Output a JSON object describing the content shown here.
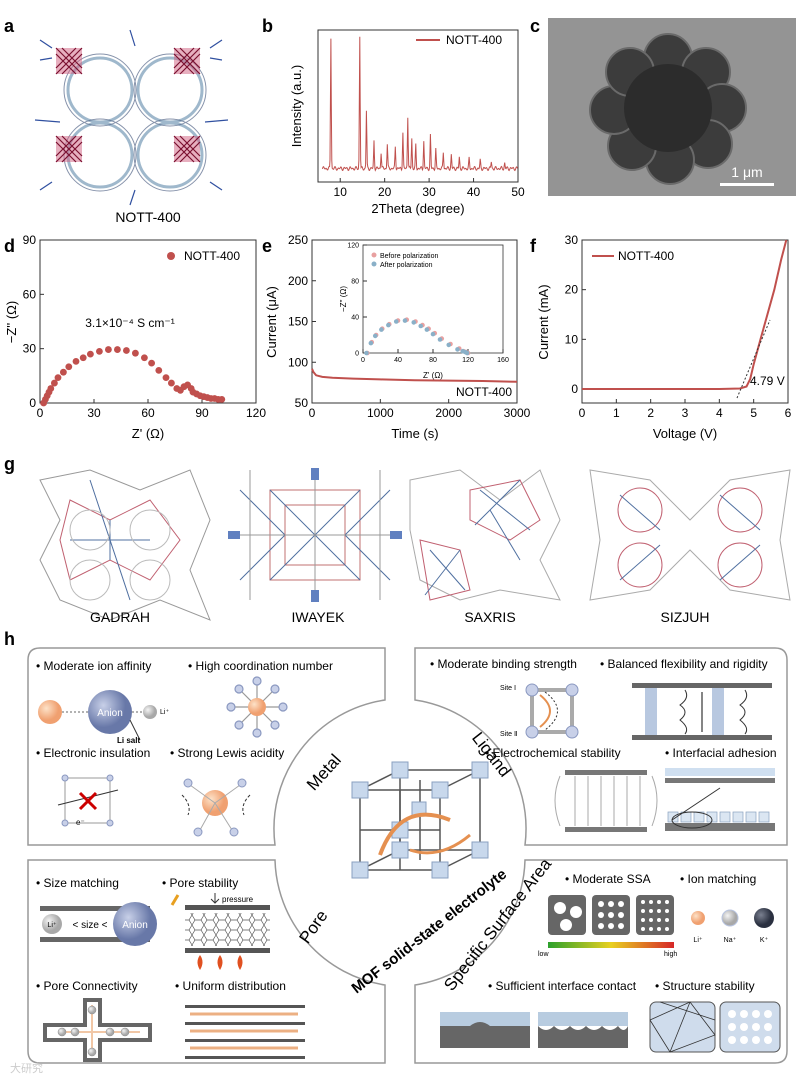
{
  "panel_letters": {
    "a": "a",
    "b": "b",
    "c": "c",
    "d": "d",
    "e": "e",
    "f": "f",
    "g": "g",
    "h": "h"
  },
  "panel_a": {
    "label": "NOTT-400"
  },
  "panel_c": {
    "scale_label": "1 μm"
  },
  "panel_d": {
    "annotation": "3.1×10⁻⁴ S cm⁻¹"
  },
  "panel_e": {
    "series_label": "NOTT-400"
  },
  "panel_f": {
    "annotation": "4.79 V"
  },
  "chart_data": [
    {
      "id": "b",
      "type": "line",
      "title": "",
      "xlabel": "2Theta (degree)",
      "ylabel": "Intensity (a.u.)",
      "xlim": [
        5,
        50
      ],
      "xticks": [
        10,
        20,
        30,
        40,
        50
      ],
      "legend": [
        "NOTT-400"
      ],
      "series": [
        {
          "name": "NOTT-400",
          "color": "#c0504d",
          "peaks": [
            [
              7.9,
              0.95
            ],
            [
              14.4,
              0.96
            ],
            [
              15.9,
              0.42
            ],
            [
              17.6,
              0.2
            ],
            [
              19.2,
              0.12
            ],
            [
              20.6,
              0.18
            ],
            [
              22.4,
              0.16
            ],
            [
              24.1,
              0.26
            ],
            [
              25.2,
              0.38
            ],
            [
              26.1,
              0.22
            ],
            [
              27.0,
              0.17
            ],
            [
              28.8,
              0.2
            ],
            [
              30.3,
              0.24
            ],
            [
              31.5,
              0.14
            ],
            [
              33.2,
              0.12
            ],
            [
              35.0,
              0.1
            ],
            [
              36.8,
              0.08
            ],
            [
              39.0,
              0.07
            ],
            [
              41.5,
              0.06
            ],
            [
              44.0,
              0.05
            ],
            [
              47.0,
              0.04
            ]
          ]
        }
      ]
    },
    {
      "id": "d",
      "type": "scatter",
      "title": "",
      "xlabel": "Z' (Ω)",
      "ylabel": "−Z'' (Ω)",
      "xlim": [
        0,
        120
      ],
      "ylim": [
        0,
        90
      ],
      "xticks": [
        0,
        30,
        60,
        90,
        120
      ],
      "yticks": [
        0,
        30,
        60,
        90
      ],
      "legend": [
        "NOTT-400"
      ],
      "series": [
        {
          "name": "NOTT-400",
          "color": "#c0504d",
          "x": [
            2,
            3,
            4,
            5,
            6,
            8,
            10,
            13,
            16,
            20,
            24,
            28,
            33,
            38,
            43,
            48,
            53,
            58,
            62,
            66,
            70,
            73,
            76,
            78,
            80,
            82,
            84,
            85,
            87,
            89,
            91,
            93,
            95,
            97,
            99,
            101
          ],
          "y": [
            0,
            2,
            4,
            6,
            8,
            11,
            14,
            17,
            20,
            23,
            25,
            27,
            28.5,
            29.5,
            29.5,
            29,
            27.5,
            25,
            22,
            18,
            14,
            11,
            8,
            7,
            9,
            10,
            8,
            6,
            5,
            4,
            3.5,
            3,
            2.5,
            2.5,
            2,
            2
          ]
        }
      ]
    },
    {
      "id": "e",
      "type": "line",
      "title": "",
      "xlabel": "Time (s)",
      "ylabel": "Current (μA)",
      "xlim": [
        0,
        3000
      ],
      "ylim": [
        50,
        250
      ],
      "xticks": [
        0,
        1000,
        2000,
        3000
      ],
      "yticks": [
        50,
        100,
        150,
        200,
        250
      ],
      "legend": [
        "NOTT-400"
      ],
      "series": [
        {
          "name": "NOTT-400",
          "color": "#c0504d",
          "x": [
            0,
            20,
            60,
            150,
            300,
            600,
            1000,
            1500,
            2000,
            2500,
            3000
          ],
          "y": [
            92,
            88,
            84,
            82,
            81,
            80,
            79,
            78,
            77.5,
            77,
            76
          ]
        }
      ],
      "inset": {
        "type": "scatter",
        "xlabel": "Z' (Ω)",
        "ylabel": "−Z'' (Ω)",
        "xlim": [
          0,
          160
        ],
        "ylim": [
          0,
          120
        ],
        "xticks": [
          0,
          40,
          80,
          120,
          160
        ],
        "yticks": [
          0,
          40,
          80,
          120
        ],
        "legend": [
          "Before polarization",
          "After polarization"
        ],
        "series": [
          {
            "name": "Before polarization",
            "color": "#e8a0a0",
            "x": [
              5,
              10,
              15,
              22,
              30,
              40,
              50,
              60,
              68,
              75,
              82,
              90,
              100,
              110,
              115,
              118,
              120
            ],
            "y": [
              0,
              12,
              20,
              27,
              32,
              36,
              37,
              35,
              31,
              27,
              22,
              16,
              10,
              5,
              2,
              1,
              0
            ]
          },
          {
            "name": "After polarization",
            "color": "#8ab0c8",
            "x": [
              4,
              9,
              14,
              21,
              29,
              38,
              48,
              58,
              66,
              73,
              80,
              88,
              98,
              108,
              114,
              117,
              119
            ],
            "y": [
              0,
              11,
              19,
              26,
              31,
              35,
              36,
              34,
              30,
              26,
              21,
              15,
              9,
              4,
              2,
              1,
              0
            ]
          }
        ]
      }
    },
    {
      "id": "f",
      "type": "line",
      "title": "",
      "xlabel": "Voltage (V)",
      "ylabel": "Current (mA)",
      "xlim": [
        0,
        6
      ],
      "ylim": [
        0,
        30
      ],
      "xticks": [
        0,
        1,
        2,
        3,
        4,
        5,
        6
      ],
      "yticks": [
        0,
        10,
        20,
        30
      ],
      "legend": [
        "NOTT-400"
      ],
      "series": [
        {
          "name": "NOTT-400",
          "color": "#c0504d",
          "x": [
            0,
            1,
            2,
            3,
            4,
            4.6,
            4.79,
            4.9,
            5.0,
            5.2,
            5.4,
            5.6,
            5.8,
            5.95
          ],
          "y": [
            0,
            0,
            0,
            0,
            0,
            0.1,
            0.5,
            2,
            5,
            10,
            15,
            20,
            26,
            30
          ]
        }
      ]
    }
  ],
  "panel_g": {
    "labels": [
      "GADRAH",
      "IWAYEK",
      "SAXRIS",
      "SIZJUH"
    ]
  },
  "panel_h": {
    "center_title": "MOF solid-state electrolyte",
    "sectors": {
      "metal": "Metal",
      "ligand": "Ligand",
      "pore": "Pore",
      "ssa": "Specific Surface Area"
    },
    "metal": {
      "items": [
        "• Moderate ion affinity",
        "• High coordination number",
        "• Electronic insulation",
        "• Strong Lewis acidity"
      ],
      "anion": "Anion",
      "li_salt": "Li salt",
      "li_plus": "Li⁺",
      "electron": "e⁻"
    },
    "ligand": {
      "items": [
        "• Moderate binding strength",
        "• Balanced flexibility and rigidity",
        "• Electrochemical stability",
        "• Interfacial adhesion"
      ],
      "site1": "Site Ⅰ",
      "site2": "Site Ⅱ"
    },
    "pore": {
      "items": [
        "• Size matching",
        "• Pore stability",
        "• Pore Connectivity",
        "• Uniform distribution"
      ],
      "li": "Li⁺",
      "size": "< size <",
      "anion": "Anion",
      "pressure": "pressure"
    },
    "ssa": {
      "items": [
        "• Moderate SSA",
        "• Ion matching",
        "• Sufficient interface contact",
        "• Structure stability"
      ],
      "low": "low",
      "high": "high",
      "ions": [
        "Li⁺",
        "Na⁺",
        "K⁺"
      ]
    }
  },
  "watermark": "大研究"
}
